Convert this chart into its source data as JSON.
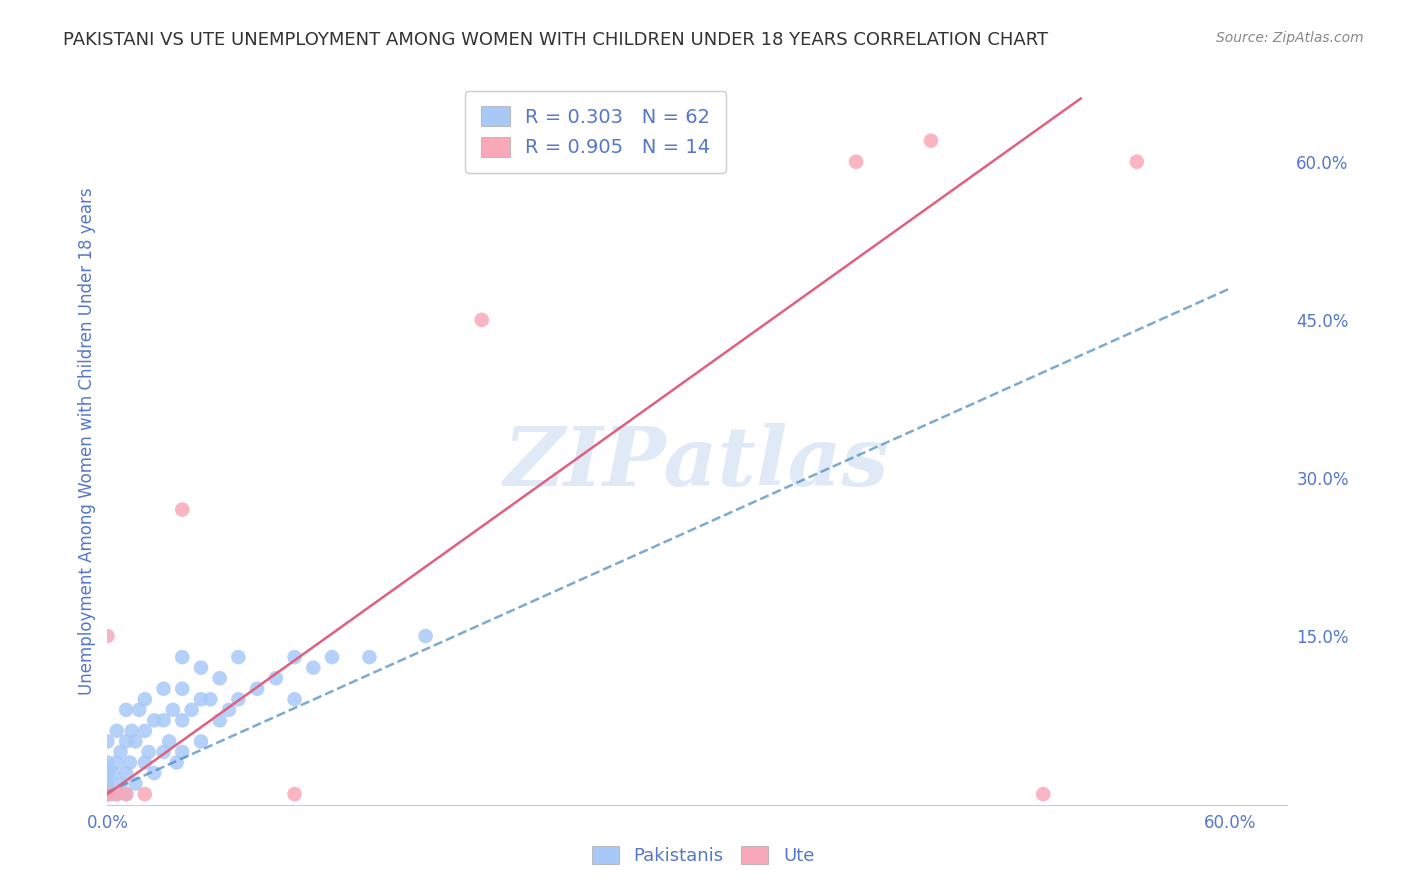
{
  "title": "PAKISTANI VS UTE UNEMPLOYMENT AMONG WOMEN WITH CHILDREN UNDER 18 YEARS CORRELATION CHART",
  "source": "Source: ZipAtlas.com",
  "ylabel": "Unemployment Among Women with Children Under 18 years",
  "xlim": [
    0.0,
    0.63
  ],
  "ylim": [
    -0.01,
    0.68
  ],
  "plot_xlim": [
    0.0,
    0.6
  ],
  "plot_ylim": [
    0.0,
    0.65
  ],
  "xticks": [
    0.0,
    0.6
  ],
  "xtick_labels": [
    "0.0%",
    "60.0%"
  ],
  "yticks_right": [
    0.15,
    0.3,
    0.45,
    0.6
  ],
  "ytick_labels_right": [
    "15.0%",
    "30.0%",
    "45.0%",
    "60.0%"
  ],
  "background_color": "#ffffff",
  "grid_color": "#dddddd",
  "watermark": "ZIPatlas",
  "watermark_color": "#c8d8f0",
  "pakistani_color": "#a8c8f8",
  "pakistani_color_dark": "#4488bb",
  "ute_color": "#f8a8b8",
  "ute_color_dark": "#e06080",
  "pakistani_R": 0.303,
  "pakistani_N": 62,
  "ute_R": 0.905,
  "ute_N": 14,
  "title_color": "#333333",
  "title_fontsize": 13,
  "tick_label_color": "#5577cc",
  "pakistani_scatter_x": [
    0.0,
    0.0,
    0.0,
    0.0,
    0.0,
    0.0,
    0.0,
    0.0,
    0.0,
    0.0,
    0.0,
    0.0,
    0.003,
    0.003,
    0.005,
    0.005,
    0.005,
    0.007,
    0.007,
    0.01,
    0.01,
    0.01,
    0.01,
    0.012,
    0.013,
    0.015,
    0.015,
    0.017,
    0.02,
    0.02,
    0.02,
    0.022,
    0.025,
    0.025,
    0.03,
    0.03,
    0.03,
    0.033,
    0.035,
    0.037,
    0.04,
    0.04,
    0.04,
    0.04,
    0.045,
    0.05,
    0.05,
    0.05,
    0.055,
    0.06,
    0.06,
    0.065,
    0.07,
    0.07,
    0.08,
    0.09,
    0.1,
    0.1,
    0.11,
    0.12,
    0.14,
    0.17
  ],
  "pakistani_scatter_y": [
    0.0,
    0.0,
    0.0,
    0.0,
    0.0,
    0.005,
    0.01,
    0.01,
    0.02,
    0.025,
    0.03,
    0.05,
    0.0,
    0.02,
    0.0,
    0.03,
    0.06,
    0.01,
    0.04,
    0.0,
    0.02,
    0.05,
    0.08,
    0.03,
    0.06,
    0.01,
    0.05,
    0.08,
    0.03,
    0.06,
    0.09,
    0.04,
    0.02,
    0.07,
    0.04,
    0.07,
    0.1,
    0.05,
    0.08,
    0.03,
    0.04,
    0.07,
    0.1,
    0.13,
    0.08,
    0.05,
    0.09,
    0.12,
    0.09,
    0.07,
    0.11,
    0.08,
    0.09,
    0.13,
    0.1,
    0.11,
    0.09,
    0.13,
    0.12,
    0.13,
    0.13,
    0.15
  ],
  "ute_scatter_x": [
    0.0,
    0.0,
    0.0,
    0.0,
    0.005,
    0.01,
    0.02,
    0.04,
    0.1,
    0.2,
    0.4,
    0.44,
    0.5,
    0.55
  ],
  "ute_scatter_y": [
    0.0,
    0.0,
    0.0,
    0.15,
    0.0,
    0.0,
    0.0,
    0.27,
    0.0,
    0.45,
    0.6,
    0.62,
    0.0,
    0.6
  ],
  "pakistani_line_x": [
    0.0,
    0.6
  ],
  "pakistani_line_y": [
    0.002,
    0.48
  ],
  "ute_line_x": [
    0.0,
    0.52
  ],
  "ute_line_y": [
    0.0,
    0.66
  ],
  "source_fontsize": 10,
  "source_color": "#888888"
}
